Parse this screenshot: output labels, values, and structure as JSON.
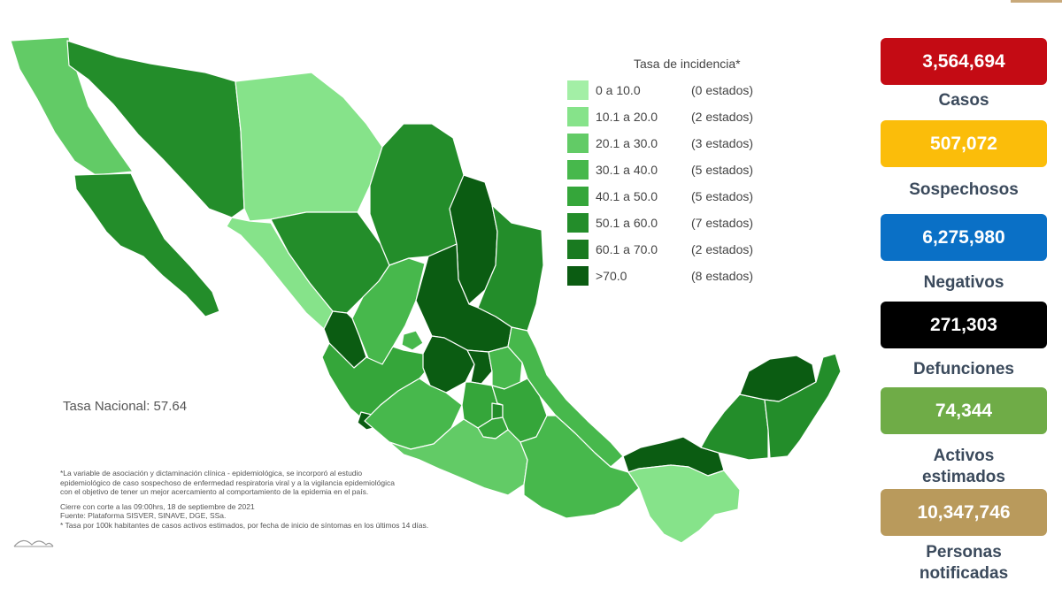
{
  "map": {
    "legend_title": "Tasa de incidencia*",
    "legend": [
      {
        "range": "0 a 10.0",
        "count": "(0 estados)",
        "color": "#a3efa6"
      },
      {
        "range": "10.1 a 20.0",
        "count": "(2 estados)",
        "color": "#86e38a"
      },
      {
        "range": "20.1 a 30.0",
        "count": "(3 estados)",
        "color": "#62cb66"
      },
      {
        "range": "30.1 a 40.0",
        "count": "(5 estados)",
        "color": "#47b84c"
      },
      {
        "range": "40.1 a 50.0",
        "count": "(5 estados)",
        "color": "#35a63a"
      },
      {
        "range": "50.1 a 60.0",
        "count": "(7 estados)",
        "color": "#238d2a"
      },
      {
        "range": "60.1 a 70.0",
        "count": "(2 estados)",
        "color": "#197a20"
      },
      {
        "range": ">70.0",
        "count": "(8 estados)",
        "color": "#0b5c12"
      }
    ],
    "tasa_nacional": "Tasa Nacional: 57.64",
    "notes": [
      "*La variable de asociación y dictaminación clínica - epidemiológica, se incorporó al estudio",
      "epidemiológico de caso sospechoso de enfermedad respiratoria viral y a la vigilancia epidemiológica",
      "con el objetivo de tener un mejor acercamiento al comportamiento de la epidemia en el país."
    ],
    "footer": [
      "Cierre con corte a las 09:00hrs, 18 de septiembre de 2021",
      "Fuente: Plataforma SISVER, SINAVE, DGE, SSa.",
      "* Tasa por 100k habitantes de casos activos estimados, por fecha de inicio de síntomas en los últimos 14 días."
    ]
  },
  "stats": [
    {
      "value": "3,564,694",
      "label": "Casos",
      "color": "#c40b14"
    },
    {
      "value": "507,072",
      "label": "Sospechosos",
      "color": "#fbbd0a"
    },
    {
      "value": "6,275,980",
      "label": "Negativos",
      "color": "#0a70c6"
    },
    {
      "value": "271,303",
      "label": "Defunciones",
      "color": "#000000"
    },
    {
      "value": "74,344",
      "label": "Activos estimados",
      "color": "#6fac47"
    },
    {
      "value": "10,347,746",
      "label": "Personas notificadas",
      "color": "#b99a5c"
    }
  ]
}
